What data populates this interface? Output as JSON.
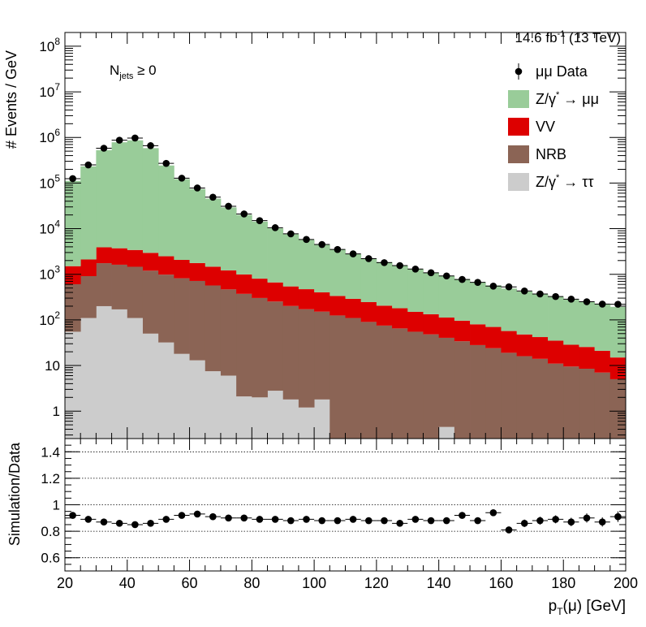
{
  "chart_data": [
    {
      "type": "bar",
      "stacked": true,
      "log_y": true,
      "lumi_label": "14.6 fb",
      "lumi_sup": "-1",
      "lumi_energy": " (13 TeV)",
      "annotation_main": "N",
      "annotation_sub": "jets",
      "annotation_rest": " ≥ 0",
      "ylabel": "# Events / GeV",
      "xlim": [
        20,
        200
      ],
      "ylim": [
        0.25,
        200000000
      ],
      "yticks": [
        1,
        10,
        100,
        1000,
        10000,
        100000,
        1000000,
        10000000,
        100000000
      ],
      "ytick_labels": [
        {
          "base": "1",
          "exp": ""
        },
        {
          "base": "10",
          "exp": ""
        },
        {
          "base": "10",
          "exp": "2"
        },
        {
          "base": "10",
          "exp": "3"
        },
        {
          "base": "10",
          "exp": "4"
        },
        {
          "base": "10",
          "exp": "5"
        },
        {
          "base": "10",
          "exp": "6"
        },
        {
          "base": "10",
          "exp": "7"
        },
        {
          "base": "10",
          "exp": "8"
        }
      ],
      "legend_position": "top-right",
      "legend": [
        {
          "key": "data",
          "label": "μμ Data"
        },
        {
          "key": "zmm",
          "label": "Z/γ",
          "sup": "*",
          "rest": " → μμ"
        },
        {
          "key": "vv",
          "label": "VV"
        },
        {
          "key": "nrb",
          "label": "NRB"
        },
        {
          "key": "ztt",
          "label": "Z/γ",
          "sup": "*",
          "rest": " → ττ"
        }
      ],
      "bins": [
        20,
        25,
        30,
        35,
        40,
        45,
        50,
        55,
        60,
        65,
        70,
        75,
        80,
        85,
        90,
        95,
        100,
        105,
        110,
        115,
        120,
        125,
        130,
        135,
        140,
        145,
        150,
        155,
        160,
        165,
        170,
        175,
        180,
        185,
        190,
        195,
        200
      ],
      "x": [
        22.5,
        27.5,
        32.5,
        37.5,
        42.5,
        47.5,
        52.5,
        57.5,
        62.5,
        67.5,
        72.5,
        77.5,
        82.5,
        87.5,
        92.5,
        97.5,
        102.5,
        107.5,
        112.5,
        117.5,
        122.5,
        127.5,
        132.5,
        137.5,
        142.5,
        147.5,
        152.5,
        157.5,
        162.5,
        167.5,
        172.5,
        177.5,
        182.5,
        187.5,
        192.5,
        197.5
      ],
      "series": [
        {
          "key": "ztt",
          "color": "#cccccc",
          "values": [
            55,
            110,
            200,
            170,
            110,
            50,
            32,
            18,
            13,
            7.5,
            6,
            2.1,
            2,
            2.8,
            1.8,
            1.2,
            1.8,
            0,
            0,
            0.2,
            0,
            0,
            0,
            0.2,
            0.45,
            0,
            0,
            0,
            0,
            0,
            0,
            0,
            0,
            0,
            0,
            0
          ]
        },
        {
          "key": "nrb",
          "color": "#8b6455",
          "values": [
            550,
            800,
            1550,
            1450,
            1350,
            1150,
            950,
            800,
            700,
            560,
            460,
            370,
            300,
            250,
            200,
            170,
            150,
            125,
            110,
            90,
            75,
            65,
            55,
            48,
            40,
            34,
            28,
            24,
            19,
            16,
            14,
            11,
            9.5,
            8.5,
            7,
            5
          ]
        },
        {
          "key": "vv",
          "color": "#dd0000",
          "values": [
            900,
            1200,
            2150,
            2100,
            1950,
            1750,
            1500,
            1250,
            1050,
            900,
            750,
            620,
            500,
            410,
            340,
            300,
            250,
            210,
            180,
            155,
            130,
            115,
            95,
            85,
            72,
            62,
            52,
            46,
            38,
            32,
            28,
            24,
            19,
            17,
            14,
            10
          ]
        },
        {
          "key": "zmm",
          "color": "#99cc99",
          "values": [
            110000,
            230000,
            520000,
            780000,
            860000,
            580000,
            240000,
            120000,
            72000,
            44000,
            28000,
            19000,
            13500,
            9500,
            7000,
            5200,
            4000,
            3150,
            2500,
            2000,
            1650,
            1350,
            1150,
            950,
            800,
            690,
            580,
            500,
            430,
            370,
            325,
            285,
            250,
            222,
            200,
            178
          ]
        }
      ],
      "data_series": {
        "key": "data",
        "values": [
          125000,
          250000,
          580000,
          870000,
          970000,
          660000,
          270000,
          128000,
          78000,
          49000,
          31000,
          21000,
          15000,
          10500,
          7700,
          5800,
          4500,
          3500,
          2800,
          2200,
          1800,
          1550,
          1300,
          1080,
          920,
          770,
          665,
          550,
          530,
          430,
          370,
          325,
          285,
          250,
          222,
          220
        ]
      }
    },
    {
      "type": "scatter",
      "xlabel_main": "p",
      "xlabel_sub": "T",
      "xlabel_rest": "(μ) [GeV]",
      "ylabel": "Simulation/Data",
      "xlim": [
        20,
        200
      ],
      "ylim": [
        0.5,
        1.5
      ],
      "yticks": [
        0.6,
        0.8,
        1,
        1.2,
        1.4
      ],
      "ytick_labels": [
        "0.6",
        "0.8",
        "1",
        "1.2",
        "1.4"
      ],
      "gridlines": [
        0.6,
        0.8,
        1,
        1.2,
        1.4
      ],
      "xticks": [
        20,
        40,
        60,
        80,
        100,
        120,
        140,
        160,
        180,
        200
      ],
      "xtick_labels": [
        "20",
        "40",
        "60",
        "80",
        "100",
        "120",
        "140",
        "160",
        "180",
        "200"
      ],
      "x": [
        22.5,
        27.5,
        32.5,
        37.5,
        42.5,
        47.5,
        52.5,
        57.5,
        62.5,
        67.5,
        72.5,
        77.5,
        82.5,
        87.5,
        92.5,
        97.5,
        102.5,
        107.5,
        112.5,
        117.5,
        122.5,
        127.5,
        132.5,
        137.5,
        142.5,
        147.5,
        152.5,
        157.5,
        162.5,
        167.5,
        172.5,
        177.5,
        182.5,
        187.5,
        192.5,
        197.5
      ],
      "y": [
        0.92,
        0.89,
        0.87,
        0.86,
        0.85,
        0.86,
        0.89,
        0.92,
        0.93,
        0.91,
        0.9,
        0.9,
        0.89,
        0.89,
        0.88,
        0.89,
        0.88,
        0.88,
        0.89,
        0.88,
        0.88,
        0.86,
        0.89,
        0.88,
        0.88,
        0.92,
        0.88,
        0.94,
        0.81,
        0.86,
        0.88,
        0.89,
        0.87,
        0.9,
        0.87,
        0.91
      ],
      "yerr": [
        0.01,
        0.01,
        0.01,
        0.01,
        0.01,
        0.01,
        0.01,
        0.01,
        0.01,
        0.01,
        0.01,
        0.01,
        0.01,
        0.01,
        0.01,
        0.01,
        0.01,
        0.01,
        0.012,
        0.012,
        0.015,
        0.015,
        0.015,
        0.018,
        0.02,
        0.02,
        0.022,
        0.025,
        0.025,
        0.028,
        0.03,
        0.03,
        0.032,
        0.035,
        0.035,
        0.04
      ]
    }
  ]
}
